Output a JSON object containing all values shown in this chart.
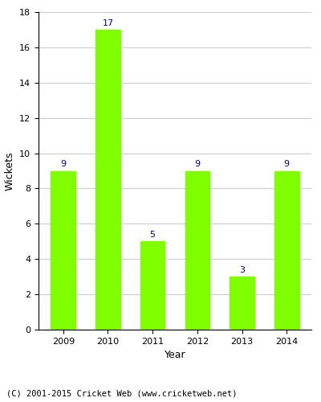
{
  "years": [
    "2009",
    "2010",
    "2011",
    "2012",
    "2013",
    "2014"
  ],
  "values": [
    9,
    17,
    5,
    9,
    3,
    9
  ],
  "bar_color": "#7FFF00",
  "bar_edgecolor": "#7FFF00",
  "label_color": "#00008B",
  "xlabel": "Year",
  "ylabel": "Wickets",
  "ylim": [
    0,
    18
  ],
  "yticks": [
    0,
    2,
    4,
    6,
    8,
    10,
    12,
    14,
    16,
    18
  ],
  "grid_color": "#cccccc",
  "background_color": "#ffffff",
  "footer_text": "(C) 2001-2015 Cricket Web (www.cricketweb.net)",
  "label_fontsize": 8,
  "axis_label_fontsize": 9,
  "tick_fontsize": 8,
  "footer_fontsize": 7.5,
  "bar_width": 0.55
}
